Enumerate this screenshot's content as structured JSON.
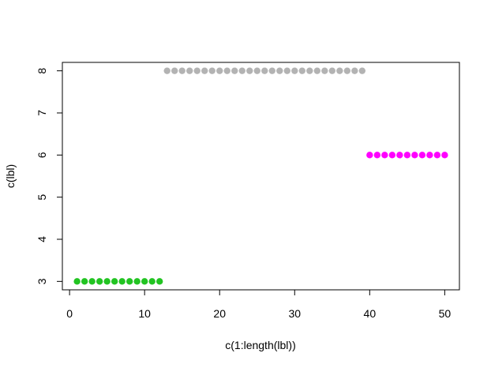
{
  "chart_data": {
    "type": "scatter",
    "xlabel": "c(1:length(lbl))",
    "ylabel": "c(lbl)",
    "xlim": [
      -0.96,
      51.96
    ],
    "ylim": [
      2.8,
      8.2
    ],
    "x_ticks": [
      0,
      10,
      20,
      30,
      40,
      50
    ],
    "y_ticks": [
      3,
      4,
      5,
      6,
      7,
      8
    ],
    "grid": false,
    "series": [
      {
        "color": "#22c422",
        "x": [
          1,
          12
        ],
        "y": 3
      },
      {
        "color": "#b3b3b3",
        "x": [
          13,
          39
        ],
        "y": 8
      },
      {
        "color": "#ff00ff",
        "x": [
          40,
          50
        ],
        "y": 6
      }
    ]
  }
}
